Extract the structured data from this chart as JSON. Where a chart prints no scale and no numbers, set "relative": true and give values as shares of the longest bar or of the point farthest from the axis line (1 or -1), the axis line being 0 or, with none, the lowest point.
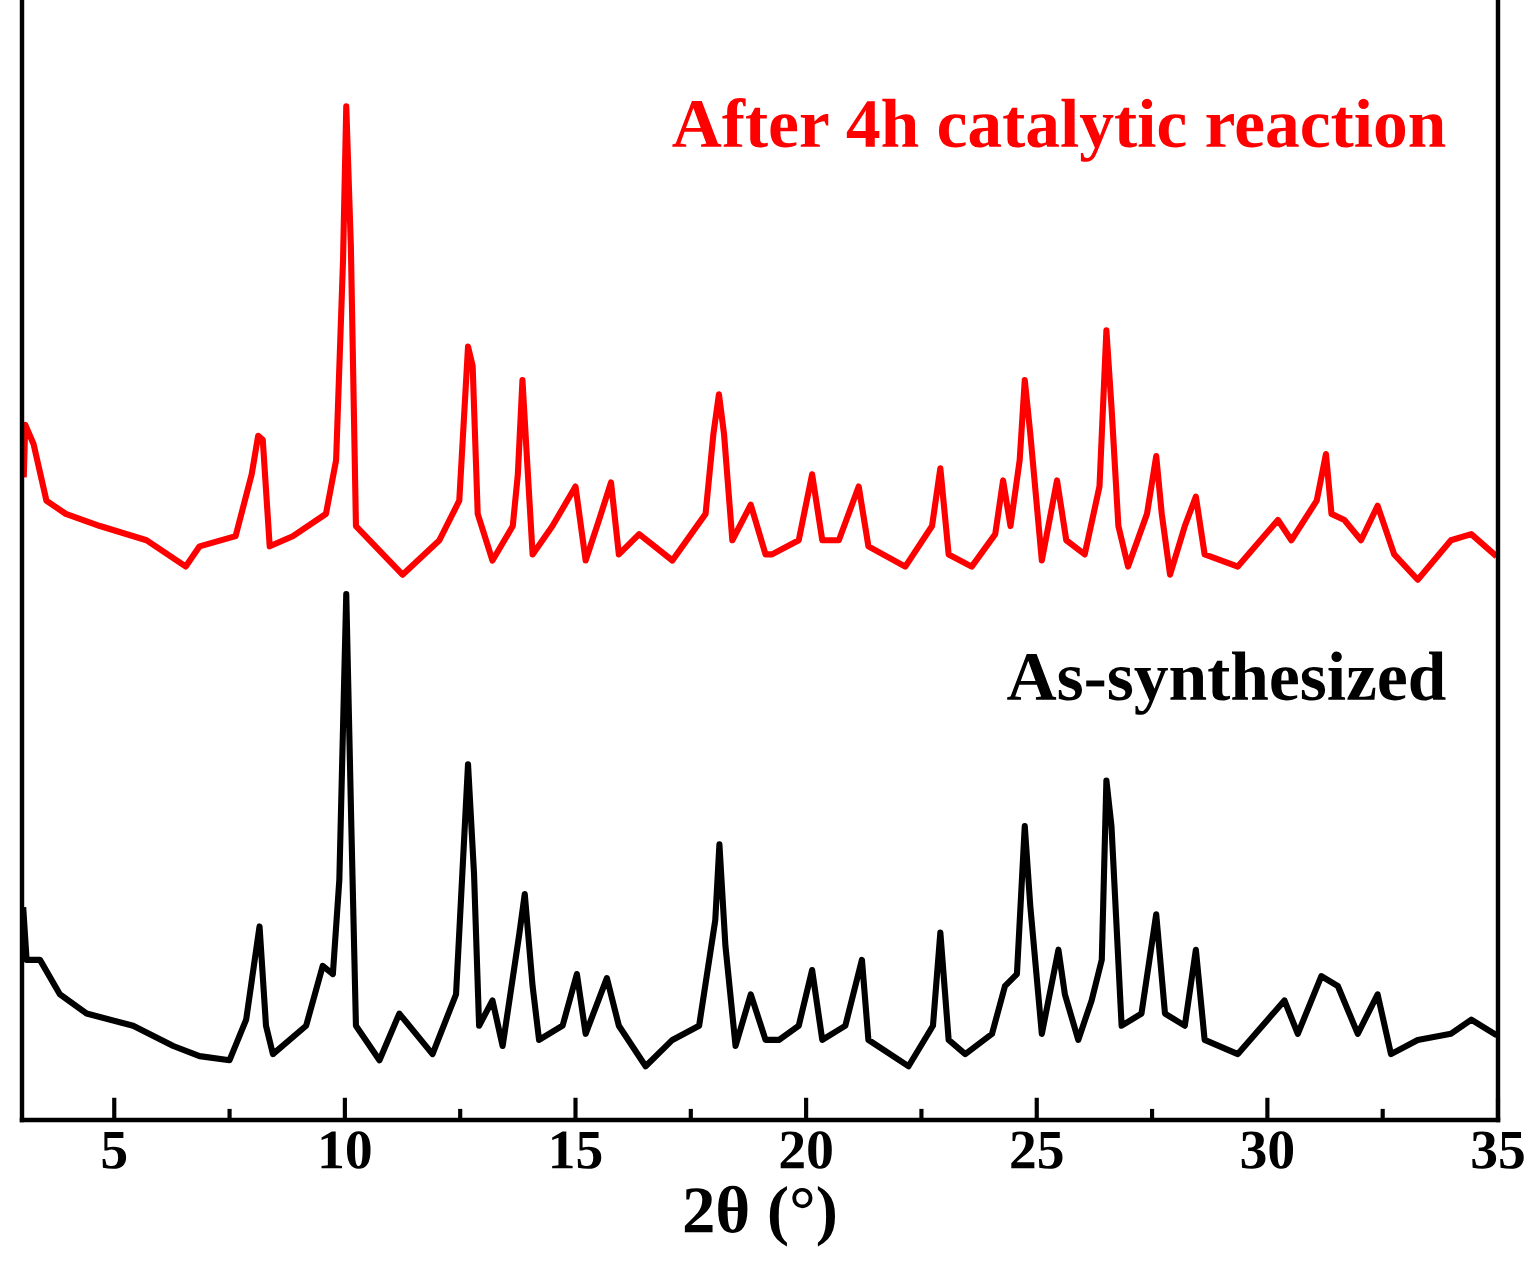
{
  "chart_data": {
    "type": "line",
    "relative": true,
    "xlabel": "2θ (°)",
    "xlim": [
      3,
      35
    ],
    "xticks": [
      5,
      {
        "value": 7.5,
        "label": null
      },
      10,
      {
        "value": 12.5,
        "label": null
      },
      15,
      {
        "value": 17.5,
        "label": null
      },
      20,
      {
        "value": 22.5,
        "label": null
      },
      25,
      {
        "value": 27.5,
        "label": null
      },
      30,
      {
        "value": 32.5,
        "label": null
      },
      35
    ],
    "grid": false,
    "legend": false,
    "marker": "none",
    "line_style": "solid",
    "series": [
      {
        "name": "After 4h catalytic reaction",
        "color": "#ff0000",
        "x": [
          3.04,
          3.07,
          3.25,
          3.53,
          3.95,
          4.69,
          5.7,
          6.55,
          6.85,
          7.63,
          7.98,
          8.12,
          8.22,
          8.37,
          8.87,
          9.59,
          9.81,
          9.96,
          10.03,
          10.13,
          10.24,
          11.25,
          12.05,
          12.48,
          12.67,
          12.77,
          12.88,
          13.2,
          13.64,
          13.75,
          13.85,
          13.95,
          14.07,
          14.5,
          15.0,
          15.22,
          15.51,
          15.77,
          15.94,
          16.38,
          17.1,
          17.82,
          17.99,
          18.11,
          18.22,
          18.4,
          18.8,
          19.12,
          19.26,
          19.84,
          20.13,
          20.35,
          20.71,
          21.14,
          21.35,
          22.15,
          22.73,
          22.91,
          23.09,
          23.59,
          24.1,
          24.27,
          24.43,
          24.63,
          24.74,
          24.86,
          25.11,
          25.44,
          25.64,
          26.04,
          26.36,
          26.51,
          26.62,
          26.77,
          26.98,
          27.39,
          27.59,
          27.71,
          27.89,
          28.21,
          28.45,
          28.64,
          29.36,
          30.23,
          30.52,
          31.07,
          31.27,
          31.39,
          31.67,
          32.03,
          32.39,
          32.75,
          33.26,
          33.98,
          34.42,
          34.92
        ],
        "values": [
          0.637,
          0.686,
          0.667,
          0.611,
          0.598,
          0.586,
          0.572,
          0.546,
          0.566,
          0.576,
          0.637,
          0.675,
          0.671,
          0.566,
          0.576,
          0.598,
          0.651,
          0.848,
          1.0,
          0.862,
          0.586,
          0.538,
          0.572,
          0.611,
          0.763,
          0.744,
          0.598,
          0.552,
          0.586,
          0.637,
          0.73,
          0.651,
          0.558,
          0.586,
          0.625,
          0.552,
          0.592,
          0.629,
          0.558,
          0.578,
          0.552,
          0.598,
          0.677,
          0.716,
          0.677,
          0.572,
          0.607,
          0.558,
          0.558,
          0.572,
          0.637,
          0.572,
          0.572,
          0.625,
          0.566,
          0.546,
          0.586,
          0.643,
          0.558,
          0.546,
          0.578,
          0.631,
          0.586,
          0.651,
          0.73,
          0.677,
          0.552,
          0.631,
          0.572,
          0.558,
          0.625,
          0.779,
          0.704,
          0.586,
          0.546,
          0.598,
          0.655,
          0.598,
          0.538,
          0.586,
          0.615,
          0.558,
          0.546,
          0.592,
          0.572,
          0.611,
          0.657,
          0.598,
          0.592,
          0.572,
          0.606,
          0.558,
          0.533,
          0.572,
          0.578,
          0.558
        ]
      },
      {
        "name": "As-synthesized",
        "color": "#000000",
        "x": [
          3.03,
          3.1,
          3.39,
          3.82,
          4.4,
          5.41,
          6.28,
          6.85,
          7.5,
          7.86,
          8.15,
          8.29,
          8.44,
          9.16,
          9.52,
          9.74,
          9.88,
          10.03,
          10.14,
          10.24,
          10.75,
          11.18,
          11.9,
          12.41,
          12.67,
          12.8,
          12.91,
          13.2,
          13.42,
          13.78,
          13.9,
          14.07,
          14.21,
          14.72,
          15.03,
          15.22,
          15.68,
          15.94,
          16.52,
          17.1,
          17.68,
          18.03,
          18.12,
          18.25,
          18.47,
          18.8,
          19.12,
          19.41,
          19.84,
          20.13,
          20.35,
          20.85,
          21.21,
          21.35,
          22.22,
          22.75,
          22.91,
          23.09,
          23.45,
          24.03,
          24.31,
          24.57,
          24.74,
          24.86,
          25.11,
          25.47,
          25.61,
          25.9,
          26.19,
          26.41,
          26.51,
          26.62,
          26.84,
          27.27,
          27.59,
          27.78,
          28.21,
          28.45,
          28.64,
          29.36,
          30.37,
          30.66,
          31.17,
          31.53,
          31.96,
          32.39,
          32.68,
          33.26,
          33.98,
          34.42,
          34.92
        ],
        "values": [
          0.207,
          0.158,
          0.158,
          0.124,
          0.105,
          0.093,
          0.073,
          0.063,
          0.059,
          0.099,
          0.191,
          0.093,
          0.065,
          0.093,
          0.152,
          0.144,
          0.237,
          0.519,
          0.29,
          0.093,
          0.059,
          0.105,
          0.065,
          0.124,
          0.351,
          0.243,
          0.093,
          0.118,
          0.073,
          0.183,
          0.223,
          0.132,
          0.079,
          0.093,
          0.144,
          0.085,
          0.14,
          0.093,
          0.053,
          0.079,
          0.093,
          0.197,
          0.272,
          0.172,
          0.073,
          0.124,
          0.079,
          0.079,
          0.093,
          0.148,
          0.079,
          0.093,
          0.158,
          0.079,
          0.053,
          0.093,
          0.185,
          0.079,
          0.065,
          0.085,
          0.132,
          0.144,
          0.29,
          0.211,
          0.085,
          0.168,
          0.124,
          0.079,
          0.118,
          0.158,
          0.335,
          0.29,
          0.093,
          0.105,
          0.203,
          0.105,
          0.093,
          0.168,
          0.079,
          0.065,
          0.118,
          0.085,
          0.142,
          0.132,
          0.085,
          0.124,
          0.065,
          0.079,
          0.085,
          0.099,
          0.085
        ]
      }
    ]
  }
}
